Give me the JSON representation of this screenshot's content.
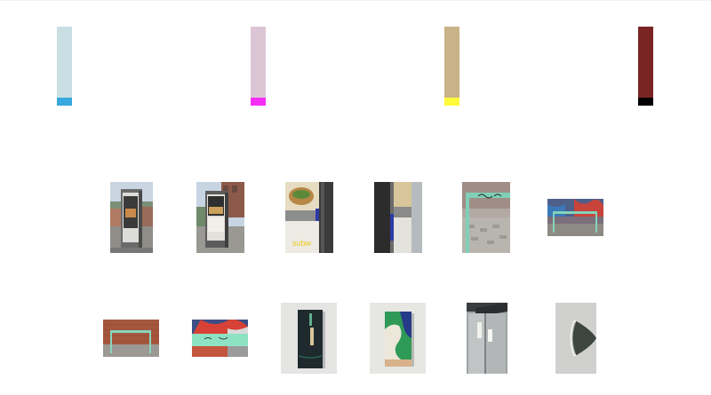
{
  "swatches": [
    {
      "main": "#c9dfe4",
      "accent": "#36a8dd"
    },
    {
      "main": "#dcc5d5",
      "accent": "#f62ef5"
    },
    {
      "main": "#c7b387",
      "accent": "#fffb3a"
    },
    {
      "main": "#7a2424",
      "accent": "#000000"
    }
  ],
  "rows": [
    {
      "thumbnails": [
        {
          "kind": "kiosk-front"
        },
        {
          "kind": "kiosk-street"
        },
        {
          "kind": "sign-closeup"
        },
        {
          "kind": "sign-closeup-dark"
        },
        {
          "kind": "barrier-vertical"
        },
        {
          "kind": "barrier-graffiti"
        }
      ]
    },
    {
      "thumbnails": [
        {
          "kind": "barrier-brick"
        },
        {
          "kind": "barrier-mural"
        },
        {
          "kind": "panel-dark"
        },
        {
          "kind": "panel-green"
        },
        {
          "kind": "doors-grey"
        },
        {
          "kind": "wall-object"
        }
      ]
    }
  ]
}
